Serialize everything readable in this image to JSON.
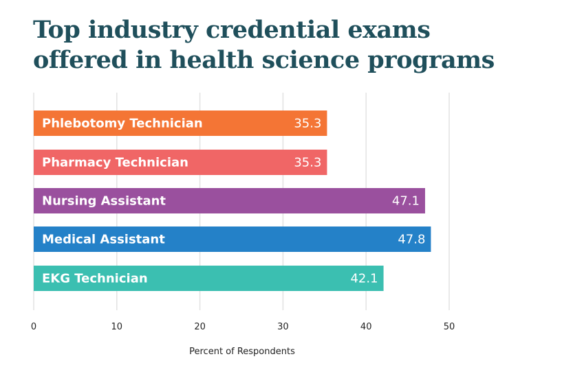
{
  "chart_data": {
    "type": "bar",
    "orientation": "horizontal",
    "title": "Top industry credential exams offered in health science programs",
    "categories": [
      "Phlebotomy Technician",
      "Pharmacy Technician",
      "Nursing Assistant",
      "Medical Assistant",
      "EKG Technician"
    ],
    "values": [
      35.3,
      35.3,
      47.1,
      47.8,
      42.1
    ],
    "colors": [
      "#f47535",
      "#f06666",
      "#9a509e",
      "#2481c8",
      "#3bbfb1"
    ],
    "xlabel": "Percent of Respondents",
    "ylabel": "",
    "xlim": [
      0,
      50
    ],
    "xticks": [
      0,
      10,
      20,
      30,
      40,
      50
    ],
    "grid": true
  }
}
